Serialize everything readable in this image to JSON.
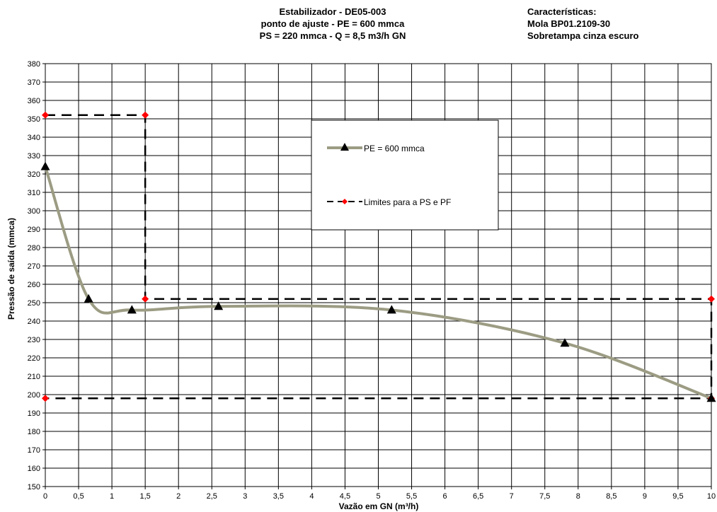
{
  "header": {
    "title_lines": [
      "Estabilizador - DE05-003",
      "ponto de ajuste - PE = 600 mmca",
      "PS = 220 mmca - Q = 8,5 m3/h GN"
    ],
    "characteristics_lines": [
      "Características:",
      "Mola BP01.2109-30",
      "Sobretampa cinza escuro"
    ]
  },
  "chart_data": {
    "type": "line",
    "xlabel": "Vazão em GN (m³/h)",
    "ylabel": "Pressão de saída (mmca)",
    "xlim": [
      0,
      10
    ],
    "ylim": [
      150,
      380
    ],
    "grid": true,
    "legend_placement": "upper-center",
    "x_ticks": [
      "0",
      "0,5",
      "1",
      "1,5",
      "2",
      "2,5",
      "3",
      "3,5",
      "4",
      "4,5",
      "5",
      "5,5",
      "6",
      "6,5",
      "7",
      "7,5",
      "8",
      "8,5",
      "9",
      "9,5",
      "10"
    ],
    "y_ticks": [
      "150",
      "160",
      "170",
      "180",
      "190",
      "200",
      "210",
      "220",
      "230",
      "240",
      "250",
      "260",
      "270",
      "280",
      "290",
      "300",
      "310",
      "320",
      "330",
      "340",
      "350",
      "360",
      "370",
      "380"
    ],
    "series": [
      {
        "name": "PE = 600 mmca",
        "color": "#9c9c84",
        "marker": "triangle",
        "marker_color": "#000000",
        "points": [
          [
            0,
            324
          ],
          [
            0.65,
            252
          ],
          [
            1.3,
            246
          ],
          [
            2.6,
            248
          ],
          [
            5.2,
            246
          ],
          [
            7.8,
            228
          ],
          [
            10,
            198
          ]
        ]
      },
      {
        "name": "Limites para a PS e PF",
        "color": "#000000",
        "style": "dashed",
        "marker": "diamond",
        "marker_color": "#ff0000",
        "segments": [
          [
            [
              0,
              352
            ],
            [
              1.5,
              352
            ],
            [
              1.5,
              252
            ],
            [
              10,
              252
            ],
            [
              10,
              198
            ],
            [
              0,
              198
            ]
          ]
        ],
        "points": [
          [
            0,
            352
          ],
          [
            1.5,
            352
          ],
          [
            1.5,
            252
          ],
          [
            10,
            252
          ],
          [
            10,
            198
          ],
          [
            0,
            198
          ]
        ]
      }
    ]
  }
}
